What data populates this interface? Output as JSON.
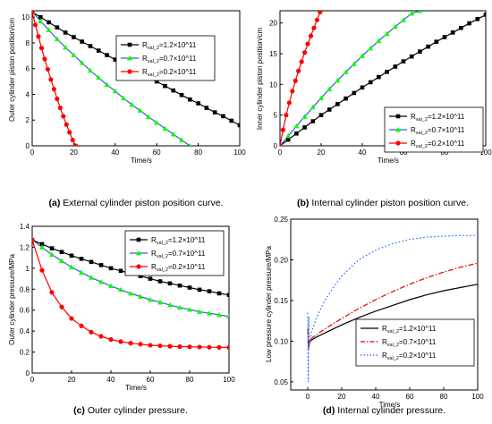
{
  "chart_data": [
    {
      "type": "line",
      "panel": "a",
      "caption_bold": "(a)",
      "caption_text": " External cylinder piston position curve.",
      "xlabel": "Time/s",
      "ylabel": "Outer cylinder piston position/cm",
      "xlim": [
        0,
        100
      ],
      "ylim": [
        0,
        10.5
      ],
      "xticks": [
        0,
        20,
        40,
        60,
        80,
        100
      ],
      "yticks": [
        0,
        2,
        4,
        6,
        8,
        10
      ],
      "legend": {
        "position": "top-right",
        "prefix": "R",
        "sub": "val_2"
      },
      "series": [
        {
          "name": "=1.2×10^11",
          "color": "#000000",
          "marker": "square",
          "x": [
            0,
            4,
            8,
            12,
            16,
            20,
            24,
            28,
            32,
            36,
            40,
            44,
            48,
            52,
            56,
            60,
            64,
            68,
            72,
            76,
            80,
            84,
            88,
            92,
            96,
            100
          ],
          "y": [
            10.4,
            10.0,
            9.6,
            9.2,
            8.8,
            8.45,
            8.1,
            7.75,
            7.4,
            7.05,
            6.7,
            6.35,
            6.0,
            5.65,
            5.3,
            5.0,
            4.65,
            4.3,
            3.95,
            3.6,
            3.3,
            2.95,
            2.6,
            2.3,
            1.95,
            1.6
          ]
        },
        {
          "name": "=0.7×10^11",
          "color": "#00ff00",
          "line_color": "#3060d0",
          "marker": "triangle",
          "x": [
            0,
            4,
            8,
            12,
            16,
            20,
            24,
            28,
            32,
            36,
            40,
            44,
            48,
            52,
            56,
            60,
            64,
            68,
            72,
            76
          ],
          "y": [
            10.4,
            9.7,
            9.0,
            8.3,
            7.65,
            7.05,
            6.45,
            5.85,
            5.3,
            4.75,
            4.25,
            3.7,
            3.2,
            2.75,
            2.25,
            1.8,
            1.35,
            0.9,
            0.45,
            0.0
          ]
        },
        {
          "name": "=0.2×10^11",
          "color": "#ff0000",
          "marker": "circle",
          "x": [
            0,
            1.5,
            3,
            4.5,
            6,
            7.5,
            9,
            10.5,
            12,
            13.5,
            15,
            16.5,
            18,
            19.5,
            21
          ],
          "y": [
            10.4,
            9.4,
            8.5,
            7.6,
            6.75,
            5.95,
            5.15,
            4.4,
            3.65,
            2.95,
            2.3,
            1.65,
            1.05,
            0.45,
            0.0
          ]
        }
      ]
    },
    {
      "type": "line",
      "panel": "b",
      "caption_bold": "(b)",
      "caption_text": " Internal cylinder piston position curve.",
      "xlabel": "Time/s",
      "ylabel": "Inner cylinder piston position/cm",
      "xlim": [
        0,
        100
      ],
      "ylim": [
        0,
        22
      ],
      "xticks": [
        0,
        20,
        40,
        60,
        80,
        100
      ],
      "yticks": [
        0,
        5,
        10,
        15,
        20
      ],
      "legend": {
        "position": "center-right",
        "prefix": "R",
        "sub": "val_2"
      },
      "series": [
        {
          "name": "=1.2×10^11",
          "color": "#000000",
          "marker": "square",
          "x": [
            0,
            4,
            8,
            12,
            16,
            20,
            24,
            28,
            32,
            36,
            40,
            44,
            48,
            52,
            56,
            60,
            64,
            68,
            72,
            76,
            80,
            84,
            88,
            92,
            96,
            100
          ],
          "y": [
            0,
            1.0,
            2.0,
            3.0,
            4.0,
            5.0,
            5.9,
            6.8,
            7.7,
            8.6,
            9.5,
            10.35,
            11.2,
            12.05,
            12.9,
            13.75,
            14.55,
            15.35,
            16.15,
            16.95,
            17.7,
            18.45,
            19.2,
            19.95,
            20.65,
            21.35
          ]
        },
        {
          "name": "=0.7×10^11",
          "color": "#00ff00",
          "line_color": "#3060d0",
          "marker": "triangle",
          "x": [
            0,
            4,
            8,
            12,
            16,
            20,
            24,
            28,
            32,
            36,
            40,
            44,
            48,
            52,
            56,
            60,
            64,
            68
          ],
          "y": [
            0,
            1.6,
            3.2,
            4.75,
            6.3,
            7.8,
            9.25,
            10.65,
            12.0,
            13.35,
            14.65,
            15.9,
            17.1,
            18.25,
            19.4,
            20.5,
            21.55,
            22.0
          ]
        },
        {
          "name": "=0.2×10^11",
          "color": "#ff0000",
          "marker": "circle",
          "x": [
            0,
            1.5,
            3,
            4.5,
            6,
            7.5,
            9,
            10.5,
            12,
            13.5,
            15,
            16.5,
            18,
            19.5
          ],
          "y": [
            0,
            2.6,
            5.0,
            7.0,
            8.9,
            10.6,
            12.2,
            13.7,
            15.2,
            16.6,
            17.9,
            19.2,
            20.5,
            21.8
          ]
        }
      ]
    },
    {
      "type": "line",
      "panel": "c",
      "caption_bold": "(c)",
      "caption_text": " Outer cylinder pressure.",
      "xlabel": "Time/s",
      "ylabel": "Outer cylinder pressure/MPa",
      "xlim": [
        0,
        100
      ],
      "ylim": [
        0,
        1.4
      ],
      "xticks": [
        0,
        20,
        40,
        60,
        80,
        100
      ],
      "yticks": [
        0,
        0.2,
        0.4,
        0.6,
        0.8,
        1.0,
        1.2,
        1.4
      ],
      "ytick_labels": [
        "0",
        "0.2",
        "0.4",
        "0.6",
        "0.8",
        "1",
        "1.2",
        "1.4"
      ],
      "legend": {
        "position": "top-right",
        "prefix": "R",
        "sub": "val_2"
      },
      "series": [
        {
          "name": "=1.2×10^11",
          "color": "#000000",
          "marker": "square",
          "x": [
            0,
            5,
            10,
            15,
            20,
            25,
            30,
            35,
            40,
            45,
            50,
            55,
            60,
            65,
            70,
            75,
            80,
            85,
            90,
            95,
            100
          ],
          "y": [
            1.27,
            1.23,
            1.19,
            1.155,
            1.12,
            1.09,
            1.06,
            1.03,
            1.0,
            0.975,
            0.95,
            0.925,
            0.9,
            0.875,
            0.855,
            0.835,
            0.815,
            0.795,
            0.78,
            0.76,
            0.745
          ]
        },
        {
          "name": "=0.7×10^11",
          "color": "#00ff00",
          "line_color": "#3060d0",
          "marker": "triangle",
          "x": [
            0,
            5,
            10,
            15,
            20,
            25,
            30,
            35,
            40,
            45,
            50,
            55,
            60,
            65,
            70,
            75,
            80,
            85,
            90,
            95,
            100
          ],
          "y": [
            1.27,
            1.2,
            1.13,
            1.07,
            1.01,
            0.96,
            0.91,
            0.87,
            0.83,
            0.795,
            0.76,
            0.73,
            0.7,
            0.675,
            0.65,
            0.625,
            0.605,
            0.585,
            0.57,
            0.555,
            0.54
          ]
        },
        {
          "name": "=0.2×10^11",
          "color": "#ff0000",
          "marker": "circle",
          "x": [
            0,
            5,
            10,
            15,
            20,
            25,
            30,
            35,
            40,
            45,
            50,
            55,
            60,
            65,
            70,
            75,
            80,
            85,
            90,
            95,
            100
          ],
          "y": [
            1.27,
            0.98,
            0.77,
            0.63,
            0.52,
            0.45,
            0.39,
            0.35,
            0.32,
            0.3,
            0.285,
            0.275,
            0.265,
            0.26,
            0.255,
            0.252,
            0.25,
            0.248,
            0.246,
            0.245,
            0.244
          ]
        }
      ]
    },
    {
      "type": "line",
      "panel": "d",
      "caption_bold": "(d)",
      "caption_text": " Internal cylinder pressure.",
      "xlabel": "Time/s",
      "ylabel": "Low pressure cylinder pressure/MPa",
      "xlim": [
        -10,
        100
      ],
      "ylim": [
        0.04,
        0.25
      ],
      "xticks": [
        0,
        20,
        40,
        60,
        80,
        100
      ],
      "yticks": [
        0.05,
        0.1,
        0.15,
        0.2,
        0.25
      ],
      "ytick_labels": [
        "0.05",
        "0.10",
        "0.15",
        "0.20",
        "0.25"
      ],
      "legend": {
        "position": "bottom-right",
        "prefix": "R",
        "sub": "val_2"
      },
      "series": [
        {
          "name": "=1.2×10^11",
          "color": "#000000",
          "dash": "solid",
          "x": [
            0,
            0.5,
            1,
            2,
            5,
            10,
            20,
            30,
            40,
            50,
            60,
            70,
            80,
            90,
            100
          ],
          "y": [
            0.1,
            0.097,
            0.099,
            0.101,
            0.105,
            0.11,
            0.12,
            0.129,
            0.137,
            0.144,
            0.151,
            0.157,
            0.162,
            0.166,
            0.17
          ]
        },
        {
          "name": "=0.7×10^11",
          "color": "#e00000",
          "dash": "dashdot",
          "x": [
            0,
            0.5,
            1,
            2,
            5,
            10,
            20,
            30,
            40,
            50,
            60,
            70,
            80,
            90,
            100
          ],
          "y": [
            0.115,
            0.09,
            0.098,
            0.103,
            0.108,
            0.115,
            0.128,
            0.14,
            0.151,
            0.161,
            0.17,
            0.178,
            0.185,
            0.191,
            0.196
          ]
        },
        {
          "name": "=0.2×10^11",
          "color": "#1e64ff",
          "dash": "dot",
          "x": [
            0,
            0.3,
            0.6,
            1,
            2,
            5,
            10,
            15,
            20,
            30,
            40,
            50,
            60,
            70,
            80,
            90,
            100
          ],
          "y": [
            0.135,
            0.05,
            0.13,
            0.095,
            0.11,
            0.128,
            0.15,
            0.166,
            0.18,
            0.2,
            0.212,
            0.22,
            0.225,
            0.228,
            0.229,
            0.23,
            0.23
          ]
        }
      ]
    }
  ]
}
